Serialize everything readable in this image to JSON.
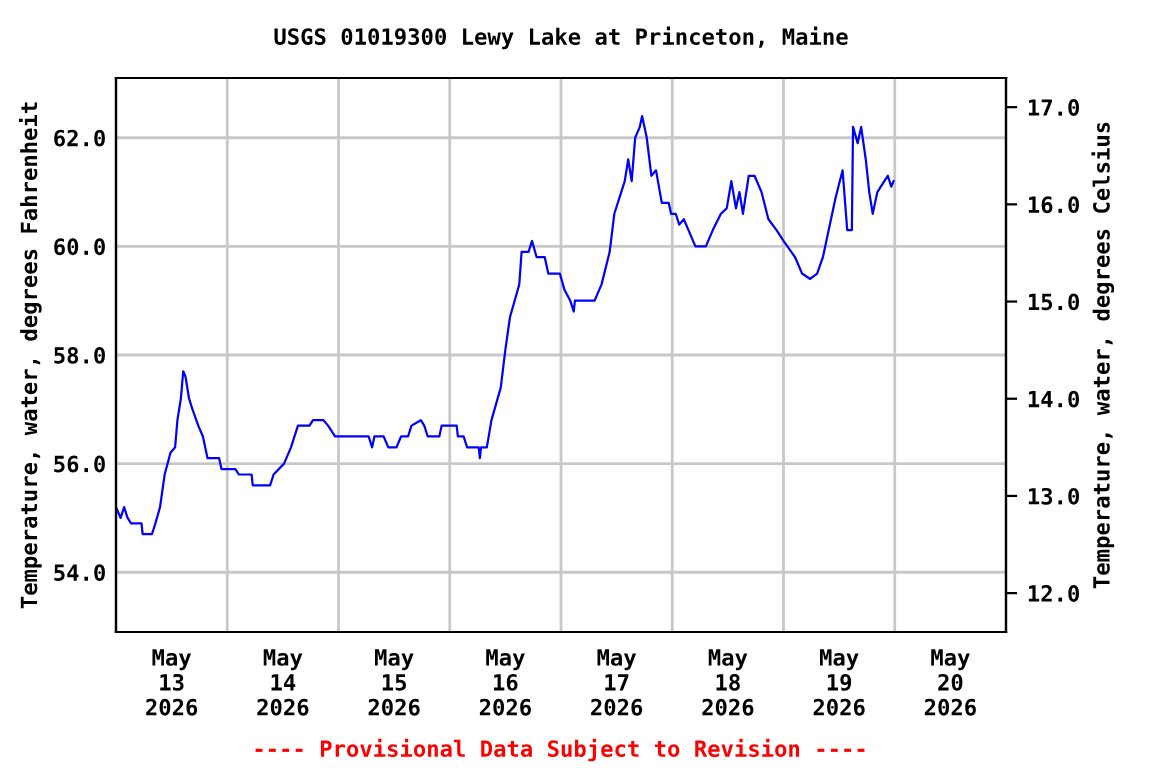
{
  "chart_data": {
    "type": "line",
    "title": "USGS 01019300 Lewy Lake at Princeton, Maine",
    "ylabel": "Temperature, water, degrees Fahrenheit",
    "y2label": "Temperature, water, degrees Celsius",
    "annotations": [
      "---- Provisional Data Subject to Revision ----"
    ],
    "xlim": [
      "2026-05-13T00:00",
      "2026-05-21T00:00"
    ],
    "xticks": [
      {
        "value": "2026-05-13T12:00",
        "label": "May\n13\n2026"
      },
      {
        "value": "2026-05-14T12:00",
        "label": "May\n14\n2026"
      },
      {
        "value": "2026-05-15T12:00",
        "label": "May\n15\n2026"
      },
      {
        "value": "2026-05-16T12:00",
        "label": "May\n16\n2026"
      },
      {
        "value": "2026-05-17T12:00",
        "label": "May\n17\n2026"
      },
      {
        "value": "2026-05-18T12:00",
        "label": "May\n18\n2026"
      },
      {
        "value": "2026-05-19T12:00",
        "label": "May\n19\n2026"
      },
      {
        "value": "2026-05-20T12:00",
        "label": "May\n20\n2026"
      },
      {
        "value": "2026-05-14T00:00",
        "label": null
      },
      {
        "value": "2026-05-15T00:00",
        "label": null
      },
      {
        "value": "2026-05-16T00:00",
        "label": null
      },
      {
        "value": "2026-05-17T00:00",
        "label": null
      },
      {
        "value": "2026-05-18T00:00",
        "label": null
      },
      {
        "value": "2026-05-19T00:00",
        "label": null
      },
      {
        "value": "2026-05-20T00:00",
        "label": null
      }
    ],
    "ylim": [
      52.9,
      63.1
    ],
    "yticks": [
      {
        "value": 54,
        "label": "54.0"
      },
      {
        "value": 56,
        "label": "56.0"
      },
      {
        "value": 58,
        "label": "58.0"
      },
      {
        "value": 60,
        "label": "60.0"
      },
      {
        "value": 62,
        "label": "62.0"
      }
    ],
    "y2lim": [
      11.6,
      17.3
    ],
    "y2ticks": [
      {
        "value": 12,
        "label": "12.0"
      },
      {
        "value": 13,
        "label": "13.0"
      },
      {
        "value": 14,
        "label": "14.0"
      },
      {
        "value": 15,
        "label": "15.0"
      },
      {
        "value": 16,
        "label": "16.0"
      },
      {
        "value": 17,
        "label": "17.0"
      }
    ],
    "grid": true,
    "marker": "none",
    "line_style": "solid",
    "series": [
      {
        "color": "#0000ff",
        "x": [
          "2026-05-13T00:00",
          "2026-05-13T01:00",
          "2026-05-13T01:45",
          "2026-05-13T02:30",
          "2026-05-13T03:15",
          "2026-05-13T05:30",
          "2026-05-13T05:45",
          "2026-05-13T07:45",
          "2026-05-13T08:30",
          "2026-05-13T09:30",
          "2026-05-13T10:30",
          "2026-05-13T11:45",
          "2026-05-13T12:45",
          "2026-05-13T13:15",
          "2026-05-13T14:00",
          "2026-05-13T14:30",
          "2026-05-13T15:00",
          "2026-05-13T15:45",
          "2026-05-13T16:30",
          "2026-05-13T17:45",
          "2026-05-13T18:45",
          "2026-05-13T19:45",
          "2026-05-13T22:15",
          "2026-05-13T22:45",
          "2026-05-14T01:45",
          "2026-05-14T02:30",
          "2026-05-14T05:15",
          "2026-05-14T05:30",
          "2026-05-14T09:15",
          "2026-05-14T10:00",
          "2026-05-14T12:15",
          "2026-05-14T13:45",
          "2026-05-14T15:15",
          "2026-05-14T17:45",
          "2026-05-14T18:30",
          "2026-05-14T20:45",
          "2026-05-14T21:45",
          "2026-05-14T23:15",
          "2026-05-15T06:30",
          "2026-05-15T07:15",
          "2026-05-15T07:45",
          "2026-05-15T09:45",
          "2026-05-15T10:45",
          "2026-05-15T12:30",
          "2026-05-15T13:30",
          "2026-05-15T15:00",
          "2026-05-15T15:45",
          "2026-05-15T17:45",
          "2026-05-15T18:30",
          "2026-05-15T19:15",
          "2026-05-15T21:45",
          "2026-05-15T22:15",
          "2026-05-16T01:30",
          "2026-05-16T01:45",
          "2026-05-16T03:00",
          "2026-05-16T03:45",
          "2026-05-16T06:15",
          "2026-05-16T06:30",
          "2026-05-16T06:45",
          "2026-05-16T08:00",
          "2026-05-16T09:00",
          "2026-05-16T10:00",
          "2026-05-16T11:00",
          "2026-05-16T12:00",
          "2026-05-16T13:00",
          "2026-05-16T14:00",
          "2026-05-16T15:00",
          "2026-05-16T15:30",
          "2026-05-16T17:00",
          "2026-05-16T17:45",
          "2026-05-16T18:45",
          "2026-05-16T20:30",
          "2026-05-16T21:15",
          "2026-05-16T23:45",
          "2026-05-17T00:45",
          "2026-05-17T02:00",
          "2026-05-17T02:45",
          "2026-05-17T03:00",
          "2026-05-17T07:15",
          "2026-05-17T08:45",
          "2026-05-17T10:30",
          "2026-05-17T11:30",
          "2026-05-17T13:00",
          "2026-05-17T13:45",
          "2026-05-17T14:30",
          "2026-05-17T15:15",
          "2026-05-17T16:00",
          "2026-05-17T17:00",
          "2026-05-17T17:30",
          "2026-05-17T18:30",
          "2026-05-17T19:30",
          "2026-05-17T20:30",
          "2026-05-17T21:45",
          "2026-05-17T23:15",
          "2026-05-17T23:45",
          "2026-05-18T00:45",
          "2026-05-18T01:30",
          "2026-05-18T02:30",
          "2026-05-18T03:30",
          "2026-05-18T05:00",
          "2026-05-18T07:15",
          "2026-05-18T08:45",
          "2026-05-18T10:30",
          "2026-05-18T11:45",
          "2026-05-18T12:45",
          "2026-05-18T13:45",
          "2026-05-18T14:30",
          "2026-05-18T15:15",
          "2026-05-18T16:30",
          "2026-05-18T17:45",
          "2026-05-18T19:15",
          "2026-05-18T20:45",
          "2026-05-18T22:30",
          "2026-05-19T00:00",
          "2026-05-19T02:30",
          "2026-05-19T04:00",
          "2026-05-19T05:45",
          "2026-05-19T07:15",
          "2026-05-19T08:30",
          "2026-05-19T09:45",
          "2026-05-19T11:15",
          "2026-05-19T12:45",
          "2026-05-19T13:45",
          "2026-05-19T14:45",
          "2026-05-19T15:00",
          "2026-05-19T16:00",
          "2026-05-19T16:45",
          "2026-05-19T17:45",
          "2026-05-19T18:30",
          "2026-05-19T19:15",
          "2026-05-19T20:15",
          "2026-05-19T21:45",
          "2026-05-19T22:30",
          "2026-05-19T23:15",
          "2026-05-19T23:45"
        ],
        "values": [
          55.2,
          55.0,
          55.2,
          55.0,
          54.9,
          54.9,
          54.7,
          54.7,
          54.9,
          55.2,
          55.8,
          56.2,
          56.3,
          56.8,
          57.2,
          57.7,
          57.6,
          57.2,
          57.0,
          56.7,
          56.5,
          56.1,
          56.1,
          55.9,
          55.9,
          55.8,
          55.8,
          55.6,
          55.6,
          55.8,
          56.0,
          56.3,
          56.7,
          56.7,
          56.8,
          56.8,
          56.7,
          56.5,
          56.5,
          56.3,
          56.5,
          56.5,
          56.3,
          56.3,
          56.5,
          56.5,
          56.7,
          56.8,
          56.7,
          56.5,
          56.5,
          56.7,
          56.7,
          56.5,
          56.5,
          56.3,
          56.3,
          56.1,
          56.3,
          56.3,
          56.8,
          57.1,
          57.4,
          58.1,
          58.7,
          59.0,
          59.3,
          59.9,
          59.9,
          60.1,
          59.8,
          59.8,
          59.5,
          59.5,
          59.2,
          59.0,
          58.8,
          59.0,
          59.0,
          59.3,
          59.9,
          60.6,
          61.0,
          61.2,
          61.6,
          61.2,
          62.0,
          62.2,
          62.4,
          62.0,
          61.3,
          61.4,
          60.8,
          60.8,
          60.6,
          60.6,
          60.4,
          60.5,
          60.3,
          60.0,
          60.0,
          60.3,
          60.6,
          60.7,
          61.2,
          60.7,
          61.0,
          60.6,
          61.3,
          61.3,
          61.0,
          60.5,
          60.3,
          60.1,
          59.8,
          59.5,
          59.4,
          59.5,
          59.8,
          60.3,
          60.9,
          61.4,
          60.3,
          60.3,
          62.2,
          61.9,
          62.2,
          61.6,
          61.0,
          60.6,
          61.0,
          61.2,
          61.3,
          61.1,
          61.2
        ]
      }
    ]
  }
}
